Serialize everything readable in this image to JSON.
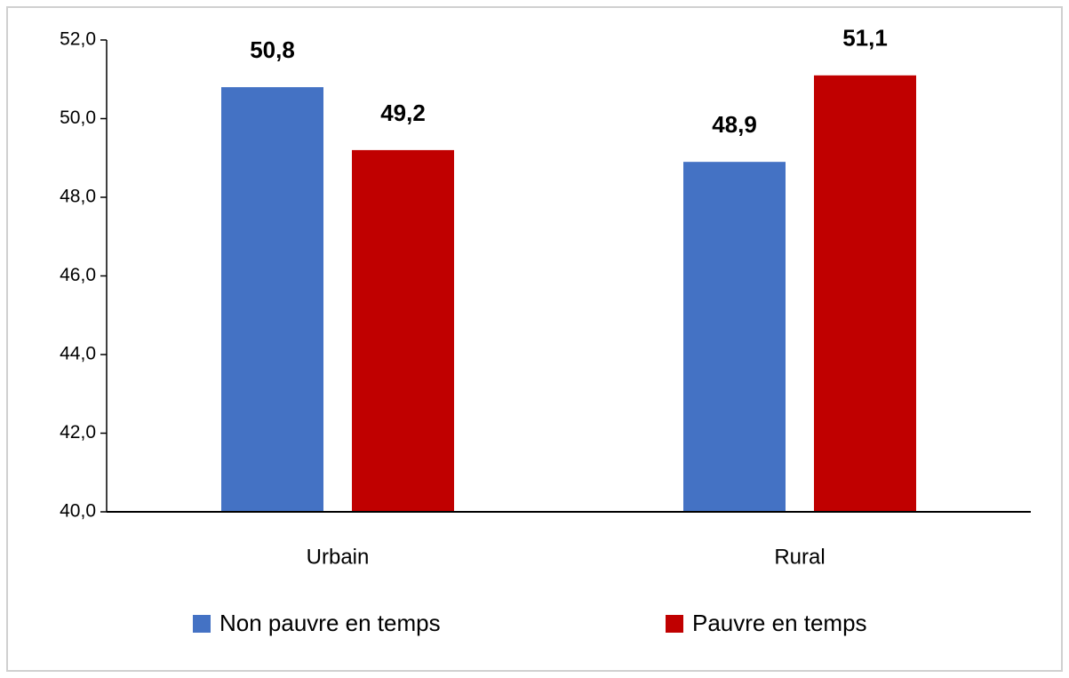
{
  "chart_data": {
    "type": "bar",
    "categories": [
      "Urbain",
      "Rural"
    ],
    "series": [
      {
        "name": "Non pauvre en temps",
        "color": "#4472c4",
        "values": [
          50.8,
          48.9
        ],
        "value_labels": [
          "50,8",
          "48,9"
        ]
      },
      {
        "name": "Pauvre en temps",
        "color": "#c00000",
        "values": [
          49.2,
          51.1
        ],
        "value_labels": [
          "49,2",
          "51,1"
        ]
      }
    ],
    "ylim": [
      40,
      52
    ],
    "yticks": [
      {
        "value": 40,
        "label": "40,0"
      },
      {
        "value": 42,
        "label": "42,0"
      },
      {
        "value": 44,
        "label": "44,0"
      },
      {
        "value": 46,
        "label": "46,0"
      },
      {
        "value": 48,
        "label": "48,0"
      },
      {
        "value": 50,
        "label": "50,0"
      },
      {
        "value": 52,
        "label": "52,0"
      }
    ],
    "grid": false,
    "legend": "bottom"
  }
}
